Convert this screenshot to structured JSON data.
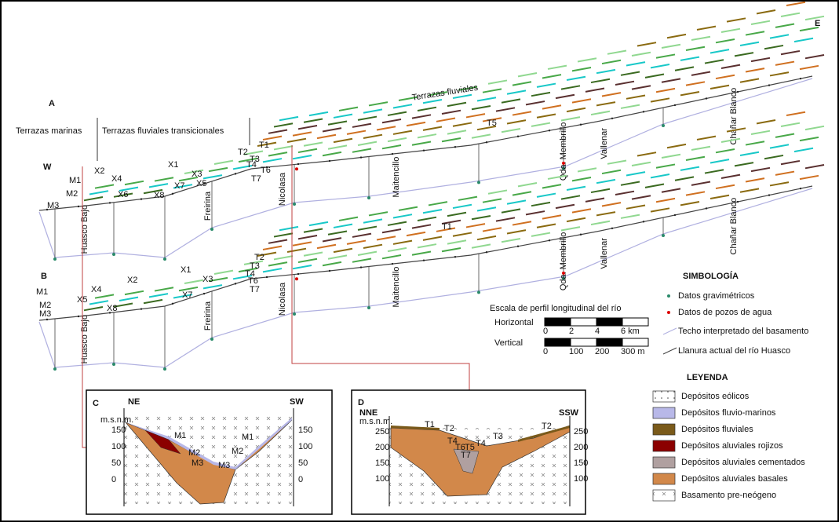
{
  "profile_a": {
    "label": "A",
    "west": "W",
    "east": "E",
    "zones": [
      "Terrazas marinas",
      "Terrazas fluviales transicionales"
    ],
    "title": "Terrazas fluviales",
    "localities": [
      "Huasco Bajo",
      "Freirina",
      "Nicolasa",
      "Maitencillo",
      "Qda. Membrillo",
      "Vallenar",
      "Chañar Blanco"
    ],
    "terrace_labels": [
      "T1",
      "T2",
      "T3",
      "T4",
      "T5",
      "T6",
      "T7",
      "X1",
      "X2",
      "X3",
      "X4",
      "X5",
      "X6",
      "X7",
      "X8",
      "M1",
      "M2",
      "M3"
    ]
  },
  "profile_b": {
    "label": "B",
    "localities": [
      "Huasco Bajo",
      "Freirina",
      "Nicolasa",
      "Maitencillo",
      "Qda. Membrillo",
      "Vallenar",
      "Chañar Blanco"
    ],
    "terrace_labels": [
      "T1",
      "T2",
      "T3",
      "T4",
      "T6",
      "T7",
      "X1",
      "X2",
      "X3",
      "X4",
      "X5",
      "X7",
      "X8",
      "M1",
      "M2",
      "M3"
    ]
  },
  "scale": {
    "title": "Escala de perfil longitudinal del río",
    "horizontal": "Horizontal",
    "horizontal_ticks": [
      "0",
      "2",
      "4",
      "6 km"
    ],
    "vertical": "Vertical",
    "vertical_ticks": [
      "0",
      "100",
      "200",
      "300 m"
    ]
  },
  "symbology": {
    "title": "SIMBOLOGÍA",
    "items": [
      "Datos gravimétricos",
      "Datos de pozos de agua",
      "Techo interpretado del basamento",
      "Llanura actual del río Huasco"
    ]
  },
  "legend": {
    "title": "LEYENDA",
    "items": [
      "Depósitos eólicos",
      "Depósitos fluvio-marinos",
      "Depósitos fluviales",
      "Depósitos aluviales rojizos",
      "Depósitos aluviales cementados",
      "Depósitos aluviales basales",
      "Basamento pre-neógeno"
    ]
  },
  "section_c": {
    "label": "C",
    "left": "NE",
    "right": "SW",
    "unit": "m.s.n.m.",
    "left_ticks": [
      "150",
      "100",
      "50",
      "0"
    ],
    "right_ticks": [
      "150",
      "100",
      "50",
      "0"
    ],
    "labels": [
      "M1",
      "M2",
      "M3",
      "M1",
      "M2",
      "M3"
    ]
  },
  "section_d": {
    "label": "D",
    "left": "NNE",
    "right": "SSW",
    "unit": "m.s.n.m.",
    "left_ticks": [
      "250",
      "200",
      "150",
      "100"
    ],
    "right_ticks": [
      "250",
      "200",
      "150",
      "100"
    ],
    "labels": [
      "T1",
      "T2",
      "T4",
      "T6",
      "T5",
      "T7",
      "T4",
      "T3",
      "T2"
    ]
  }
}
